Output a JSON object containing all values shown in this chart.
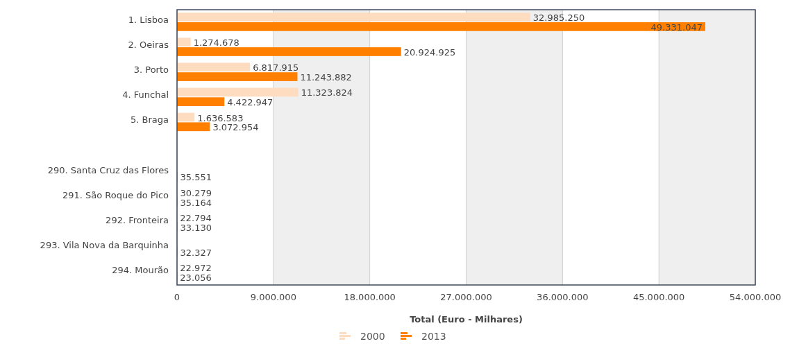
{
  "chart_data": {
    "type": "bar",
    "orientation": "horizontal",
    "xlabel": "Total (Euro - Milhares)",
    "categories": [
      "1. Lisboa",
      "2. Oeiras",
      "3. Porto",
      "4. Funchal",
      "5. Braga",
      null,
      "290. Santa Cruz das Flores",
      "291. São Roque do Pico",
      "292. Fronteira",
      "293. Vila Nova da Barquinha",
      "294. Mourão"
    ],
    "series": [
      {
        "name": "2000",
        "color": "#fddcc0",
        "values": [
          32985250,
          1274678,
          6817915,
          11323824,
          1636583,
          null,
          null,
          30279,
          22794,
          null,
          22972
        ],
        "value_labels": [
          "32.985.250",
          "1.274.678",
          "6.817.915",
          "11.323.824",
          "1.636.583",
          null,
          null,
          "30.279",
          "22.794",
          null,
          "22.972"
        ]
      },
      {
        "name": "2013",
        "color": "#ff8000",
        "values": [
          49331047,
          20924925,
          11243882,
          4422947,
          3072954,
          null,
          35551,
          35164,
          33130,
          32327,
          23056
        ],
        "value_labels": [
          "49.331.047",
          "20.924.925",
          "11.243.882",
          "4.422.947",
          "3.072.954",
          null,
          "35.551",
          "35.164",
          "33.130",
          "32.327",
          "23.056"
        ]
      }
    ],
    "xlim": [
      0,
      54000000
    ],
    "xticks": [
      0,
      {
        "value": 9000000,
        "label": "9.000.000"
      },
      {
        "value": 18000000,
        "label": "18.000.000"
      },
      {
        "value": 27000000,
        "label": "27.000.000"
      },
      {
        "value": 36000000,
        "label": "36.000.000"
      },
      {
        "value": 45000000,
        "label": "45.000.000"
      },
      {
        "value": 54000000,
        "label": "54.000.000"
      }
    ],
    "grid": "x",
    "bands": [
      {
        "axis": "x",
        "from": 9000000,
        "to": 18000000,
        "color": "#efefef"
      },
      {
        "axis": "x",
        "from": 27000000,
        "to": 36000000,
        "color": "#efefef"
      },
      {
        "axis": "x",
        "from": 45000000,
        "to": 54000000,
        "color": "#efefef"
      }
    ],
    "legend": "bottom"
  }
}
